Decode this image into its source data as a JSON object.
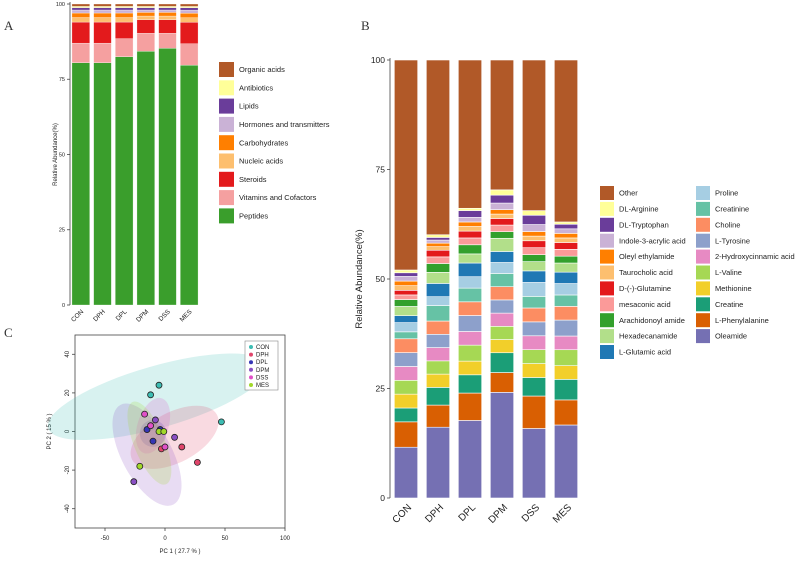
{
  "chart_data": [
    {
      "panel": "A",
      "type": "bar",
      "stacked": true,
      "ylabel": "Relative Abundance(%)",
      "ylim": [
        0,
        100
      ],
      "yticks": [
        0,
        25,
        50,
        75,
        100
      ],
      "categories": [
        "CON",
        "DPH",
        "DPL",
        "DPM",
        "DSS",
        "MES"
      ],
      "series": [
        {
          "name": "Peptides",
          "color": "#3a9e2c",
          "values": [
            80.5,
            80.5,
            82.5,
            84.3,
            85.3,
            78.5
          ]
        },
        {
          "name": "Vitamins and Cofactors",
          "color": "#f5a0a0",
          "values": [
            6.5,
            6.5,
            6.0,
            6.0,
            5.0,
            7.0
          ]
        },
        {
          "name": "Steroids",
          "color": "#e31a1c",
          "values": [
            7.0,
            7.0,
            5.5,
            4.5,
            4.5,
            7.0
          ]
        },
        {
          "name": "Nucleic acids",
          "color": "#fdbf6f",
          "values": [
            1.5,
            1.5,
            1.5,
            1.2,
            1.2,
            1.5
          ]
        },
        {
          "name": "Carbohydrates",
          "color": "#ff7f00",
          "values": [
            1.5,
            1.5,
            1.5,
            1.2,
            1.2,
            1.5
          ]
        },
        {
          "name": "Hormones and transmitters",
          "color": "#cab2d6",
          "values": [
            1.0,
            1.0,
            1.0,
            0.8,
            0.8,
            1.0
          ]
        },
        {
          "name": "Lipids",
          "color": "#6a3d9a",
          "values": [
            0.8,
            0.8,
            0.8,
            0.8,
            0.8,
            0.8
          ]
        },
        {
          "name": "Antibiotics",
          "color": "#ffff99",
          "values": [
            0.4,
            0.4,
            0.4,
            0.4,
            0.4,
            0.4
          ]
        },
        {
          "name": "Organic acids",
          "color": "#b15928",
          "values": [
            0.8,
            0.8,
            0.8,
            0.8,
            0.8,
            0.8
          ]
        }
      ],
      "legend_order": [
        "Organic acids",
        "Antibiotics",
        "Lipids",
        "Hormones and transmitters",
        "Carbohydrates",
        "Nucleic acids",
        "Steroids",
        "Vitamins and Cofactors",
        "Peptides"
      ]
    },
    {
      "panel": "B",
      "type": "bar",
      "stacked": true,
      "ylabel": "Relative Abundance(%)",
      "ylim": [
        0,
        100
      ],
      "yticks": [
        0,
        25,
        50,
        75,
        100
      ],
      "categories": [
        "CON",
        "DPH",
        "DPL",
        "DPM",
        "DSS",
        "MES"
      ],
      "series": [
        {
          "name": "Oleamide",
          "color": "#7570b3",
          "values": [
            11,
            16,
            17,
            24,
            15,
            16
          ]
        },
        {
          "name": "L-Phenylalanine",
          "color": "#d95f02",
          "values": [
            5.5,
            5,
            6,
            4.5,
            7,
            5.5
          ]
        },
        {
          "name": "Creatine",
          "color": "#1b9e77",
          "values": [
            3,
            4,
            4,
            4.5,
            4,
            4.5
          ]
        },
        {
          "name": "Methionine",
          "color": "#f2cf2a",
          "values": [
            3,
            3,
            3,
            3,
            3,
            3
          ]
        },
        {
          "name": "L-Valine",
          "color": "#a6d854",
          "values": [
            3,
            3,
            3.5,
            3,
            3,
            3.5
          ]
        },
        {
          "name": "2-Hydroxycinnamic acid",
          "color": "#e78ac3",
          "values": [
            3,
            3,
            3,
            3,
            3,
            3
          ]
        },
        {
          "name": "L-Tyrosine",
          "color": "#8da0cb",
          "values": [
            3,
            3,
            3.5,
            3,
            3,
            3.5
          ]
        },
        {
          "name": "Choline",
          "color": "#fc8d62",
          "values": [
            3,
            3,
            3,
            3,
            3,
            3
          ]
        },
        {
          "name": "Creatinine",
          "color": "#66c2a5",
          "values": [
            1.5,
            3.5,
            3,
            3,
            2.5,
            2.5
          ]
        },
        {
          "name": "Proline",
          "color": "#a6cee3",
          "values": [
            2,
            2,
            2.5,
            2.5,
            3,
            2.5
          ]
        },
        {
          "name": "L-Glutamic acid",
          "color": "#1f78b4",
          "values": [
            1.5,
            3,
            3,
            2.5,
            2.5,
            2.5
          ]
        },
        {
          "name": "Hexadecanamide",
          "color": "#b2df8a",
          "values": [
            2,
            2.5,
            2,
            3,
            2,
            2
          ]
        },
        {
          "name": "Arachidonoyl amide",
          "color": "#33a02c",
          "values": [
            1.5,
            2,
            2,
            1.5,
            1.5,
            1.5
          ]
        },
        {
          "name": "mesaconic acid",
          "color": "#fb9a99",
          "values": [
            1,
            1.5,
            1.5,
            1.5,
            1.5,
            1.5
          ]
        },
        {
          "name": "D-(-)-Glutamine",
          "color": "#e31a1c",
          "values": [
            1,
            1.5,
            1.5,
            1.5,
            1.5,
            1.5
          ]
        },
        {
          "name": "Taurocholic acid",
          "color": "#fdbf6f",
          "values": [
            1,
            0.8,
            1,
            1,
            1,
            1
          ]
        },
        {
          "name": "Oleyl ethylamide",
          "color": "#ff7f00",
          "values": [
            1,
            0.8,
            1,
            1,
            1,
            1
          ]
        },
        {
          "name": "Indole-3-acrylic acid",
          "color": "#cab2d6",
          "values": [
            1,
            0.7,
            1,
            1.5,
            1.5,
            1
          ]
        },
        {
          "name": "DL-Tryptophan",
          "color": "#6a3d9a",
          "values": [
            0.8,
            0.6,
            1.5,
            1.8,
            2,
            1
          ]
        },
        {
          "name": "DL-Arginine",
          "color": "#ffff99",
          "values": [
            0.6,
            0.6,
            0.5,
            1.2,
            1,
            0.5
          ]
        },
        {
          "name": "Other",
          "color": "#b15928",
          "values": [
            45.5,
            39.5,
            32.5,
            29.5,
            32.5,
            35.5
          ]
        }
      ],
      "legend_order": [
        "Other",
        "DL-Arginine",
        "DL-Tryptophan",
        "Indole-3-acrylic acid",
        "Oleyl ethylamide",
        "Taurocholic acid",
        "D-(-)-Glutamine",
        "mesaconic acid",
        "Arachidonoyl amide",
        "Hexadecanamide",
        "L-Glutamic acid",
        "Proline",
        "Creatinine",
        "Choline",
        "L-Tyrosine",
        "2-Hydroxycinnamic acid",
        "L-Valine",
        "Methionine",
        "Creatine",
        "L-Phenylalanine",
        "Oleamide"
      ]
    },
    {
      "panel": "C",
      "type": "scatter",
      "xlabel": "PC 1 ( 27.7 % )",
      "ylabel": "PC 2 ( 15 % )",
      "xlim": [
        -75,
        100
      ],
      "ylim": [
        -50,
        50
      ],
      "xticks": [
        -50,
        0,
        50,
        100
      ],
      "yticks": [
        -40,
        -20,
        0,
        20,
        40
      ],
      "series": [
        {
          "name": "CON",
          "color": "#3dbdb3",
          "points": [
            [
              -5,
              24
            ],
            [
              -12,
              19
            ],
            [
              47,
              5
            ]
          ],
          "ellipse": {
            "cx": -6,
            "cy": 18,
            "rx": 95,
            "ry": 16,
            "angle": -16
          }
        },
        {
          "name": "DPH",
          "color": "#e0456b",
          "points": [
            [
              27,
              -16
            ],
            [
              14,
              -8
            ],
            [
              -3,
              -9
            ]
          ],
          "ellipse": {
            "cx": 8,
            "cy": -3,
            "rx": 40,
            "ry": 13,
            "angle": -28
          }
        },
        {
          "name": "DPL",
          "color": "#3535b5",
          "points": [
            [
              -15,
              1
            ],
            [
              -10,
              -5
            ],
            [
              -4,
              1
            ]
          ],
          "ellipse": {
            "cx": -10,
            "cy": -1,
            "rx": 11,
            "ry": 7,
            "angle": 0
          }
        },
        {
          "name": "DPM",
          "color": "#8a4fc4",
          "points": [
            [
              -26,
              -26
            ],
            [
              -8,
              6
            ],
            [
              8,
              -3
            ]
          ],
          "ellipse": {
            "cx": -15,
            "cy": -12,
            "rx": 47,
            "ry": 13,
            "angle": 62
          }
        },
        {
          "name": "DSS",
          "color": "#e050c8",
          "points": [
            [
              -17,
              9
            ],
            [
              -12,
              3
            ],
            [
              0,
              -8
            ]
          ],
          "ellipse": {
            "cx": -10,
            "cy": 3,
            "rx": 24,
            "ry": 8,
            "angle": -72
          }
        },
        {
          "name": "MES",
          "color": "#a2d82a",
          "points": [
            [
              -21,
              -18
            ],
            [
              -5,
              0
            ],
            [
              -1,
              0
            ]
          ],
          "ellipse": {
            "cx": -13,
            "cy": -6,
            "rx": 37,
            "ry": 8,
            "angle": 68
          }
        }
      ]
    }
  ],
  "panel_labels": {
    "a": "A",
    "b": "B",
    "c": "C"
  }
}
